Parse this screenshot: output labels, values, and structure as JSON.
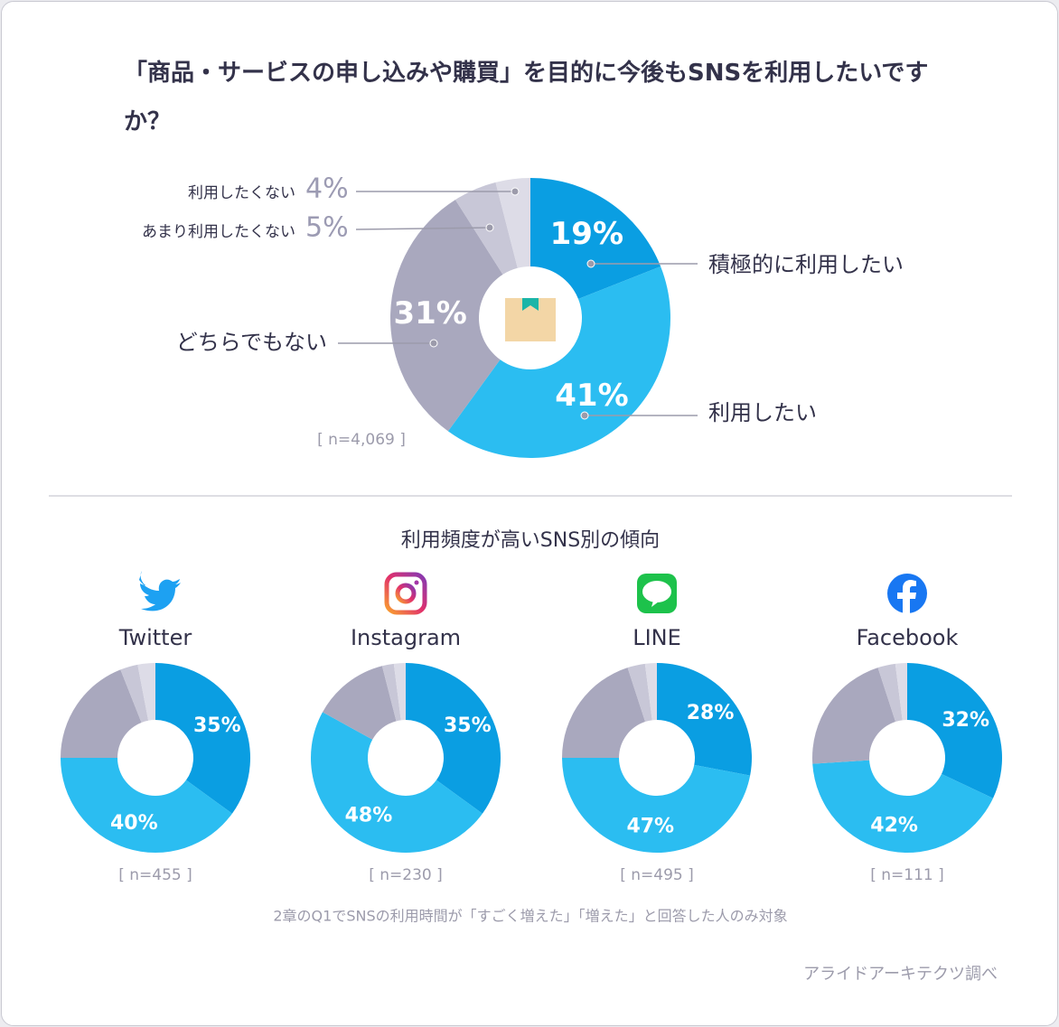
{
  "title": "「商品・サービスの申し込みや購買」を目的に今後もSNSを利用したいですか？",
  "subtitle": "利用頻度が高いSNS別の傾向",
  "note": "2章のQ1でSNSの利用時間が「すごく増えた」「増えた」と回答した人のみ対象",
  "source": "アライドアーキテクツ調べ",
  "chart_data": [
    {
      "type": "donut",
      "note": "[ n=4,069 ]",
      "categories": [
        "積極的に利用したい",
        "利用したい",
        "どちらでもない",
        "あまり利用したくない",
        "利用したくない"
      ],
      "values": [
        19,
        41,
        31,
        5,
        4
      ],
      "value_labels": [
        "19%",
        "41%",
        "31%",
        "5%",
        "4%"
      ],
      "colors": [
        "#0a9ee2",
        "#2bbdf1",
        "#a9a8be",
        "#c8c7d7",
        "#dddce7"
      ]
    },
    {
      "type": "donut",
      "title": "Twitter",
      "note": "[ n=455 ]",
      "categories": [
        null,
        null,
        null,
        null,
        null
      ],
      "values": [
        35,
        40,
        19,
        3,
        3
      ],
      "value_labels": [
        "35%",
        "40%",
        null,
        null,
        null
      ],
      "colors": [
        "#0a9ee2",
        "#2bbdf1",
        "#a9a8be",
        "#c8c7d7",
        "#dddce7"
      ]
    },
    {
      "type": "donut",
      "title": "Instagram",
      "note": "[ n=230 ]",
      "categories": [
        null,
        null,
        null,
        null,
        null
      ],
      "values": [
        35,
        48,
        13,
        2,
        2
      ],
      "value_labels": [
        "35%",
        "48%",
        null,
        null,
        null
      ],
      "colors": [
        "#0a9ee2",
        "#2bbdf1",
        "#a9a8be",
        "#c8c7d7",
        "#dddce7"
      ]
    },
    {
      "type": "donut",
      "title": "LINE",
      "note": "[ n=495 ]",
      "categories": [
        null,
        null,
        null,
        null,
        null
      ],
      "values": [
        28,
        47,
        20,
        3,
        2
      ],
      "value_labels": [
        "28%",
        "47%",
        null,
        null,
        null
      ],
      "colors": [
        "#0a9ee2",
        "#2bbdf1",
        "#a9a8be",
        "#c8c7d7",
        "#dddce7"
      ]
    },
    {
      "type": "donut",
      "title": "Facebook",
      "note": "[ n=111 ]",
      "categories": [
        null,
        null,
        null,
        null,
        null
      ],
      "values": [
        32,
        42,
        21,
        3,
        2
      ],
      "value_labels": [
        "32%",
        "42%",
        null,
        null,
        null
      ],
      "colors": [
        "#0a9ee2",
        "#2bbdf1",
        "#a9a8be",
        "#c8c7d7",
        "#dddce7"
      ]
    }
  ]
}
